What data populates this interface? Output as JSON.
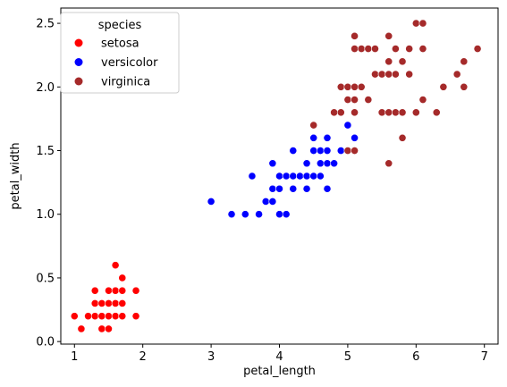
{
  "chart_data": {
    "type": "scatter",
    "xlabel": "petal_length",
    "ylabel": "petal_width",
    "xlim": [
      0.8,
      7.2
    ],
    "ylim": [
      -0.02,
      2.62
    ],
    "xticks": [
      1,
      2,
      3,
      4,
      5,
      6,
      7
    ],
    "yticks": [
      0.0,
      0.5,
      1.0,
      1.5,
      2.0,
      2.5
    ],
    "ytick_labels": [
      "0.0",
      "0.5",
      "1.0",
      "1.5",
      "2.0",
      "2.5"
    ],
    "legend": {
      "title": "species",
      "placement": "top-left"
    },
    "grid": false,
    "series": [
      {
        "name": "setosa",
        "color": "#ff0000",
        "x": [
          1.0,
          1.1,
          1.2,
          1.3,
          1.3,
          1.3,
          1.4,
          1.4,
          1.4,
          1.5,
          1.5,
          1.5,
          1.5,
          1.6,
          1.6,
          1.6,
          1.6,
          1.7,
          1.7,
          1.7,
          1.7,
          1.9,
          1.9,
          1.9
        ],
        "y": [
          0.2,
          0.1,
          0.2,
          0.2,
          0.3,
          0.4,
          0.2,
          0.3,
          0.1,
          0.2,
          0.3,
          0.4,
          0.1,
          0.2,
          0.4,
          0.6,
          0.3,
          0.2,
          0.3,
          0.4,
          0.5,
          0.2,
          0.4,
          0.4
        ]
      },
      {
        "name": "versicolor",
        "color": "#0000ff",
        "x": [
          3.0,
          3.3,
          3.5,
          3.6,
          3.7,
          3.8,
          3.9,
          3.9,
          3.9,
          4.0,
          4.0,
          4.0,
          4.1,
          4.1,
          4.1,
          4.2,
          4.2,
          4.2,
          4.3,
          4.4,
          4.4,
          4.4,
          4.5,
          4.5,
          4.5,
          4.6,
          4.6,
          4.6,
          4.7,
          4.7,
          4.7,
          4.7,
          4.8,
          4.8,
          4.9,
          4.9,
          5.0,
          5.0,
          5.1,
          5.1
        ],
        "y": [
          1.1,
          1.0,
          1.0,
          1.3,
          1.0,
          1.1,
          1.1,
          1.2,
          1.4,
          1.0,
          1.2,
          1.3,
          1.0,
          1.3,
          1.3,
          1.2,
          1.3,
          1.5,
          1.3,
          1.2,
          1.3,
          1.4,
          1.3,
          1.5,
          1.6,
          1.3,
          1.4,
          1.5,
          1.2,
          1.4,
          1.5,
          1.6,
          1.4,
          1.8,
          1.5,
          1.5,
          1.7,
          1.7,
          1.5,
          1.6
        ]
      },
      {
        "name": "virginica",
        "color": "#a52a2a",
        "x": [
          4.5,
          4.8,
          4.8,
          4.9,
          4.9,
          5.0,
          5.0,
          5.0,
          5.1,
          5.1,
          5.1,
          5.1,
          5.1,
          5.1,
          5.2,
          5.2,
          5.3,
          5.3,
          5.4,
          5.4,
          5.5,
          5.5,
          5.5,
          5.6,
          5.6,
          5.6,
          5.6,
          5.6,
          5.7,
          5.7,
          5.7,
          5.8,
          5.8,
          5.8,
          5.9,
          5.9,
          6.0,
          6.0,
          6.1,
          6.1,
          6.1,
          6.3,
          6.4,
          6.6,
          6.7,
          6.7,
          6.9
        ],
        "y": [
          1.7,
          1.8,
          1.8,
          1.8,
          2.0,
          1.5,
          1.9,
          2.0,
          1.5,
          1.8,
          1.9,
          2.0,
          2.3,
          2.4,
          2.0,
          2.3,
          1.9,
          2.3,
          2.1,
          2.3,
          1.8,
          2.1,
          2.1,
          1.4,
          1.8,
          2.1,
          2.2,
          2.4,
          1.8,
          2.1,
          2.3,
          1.6,
          1.8,
          2.2,
          2.1,
          2.3,
          1.8,
          2.5,
          1.9,
          2.3,
          2.5,
          1.8,
          2.0,
          2.1,
          2.0,
          2.2,
          2.3
        ]
      }
    ]
  }
}
